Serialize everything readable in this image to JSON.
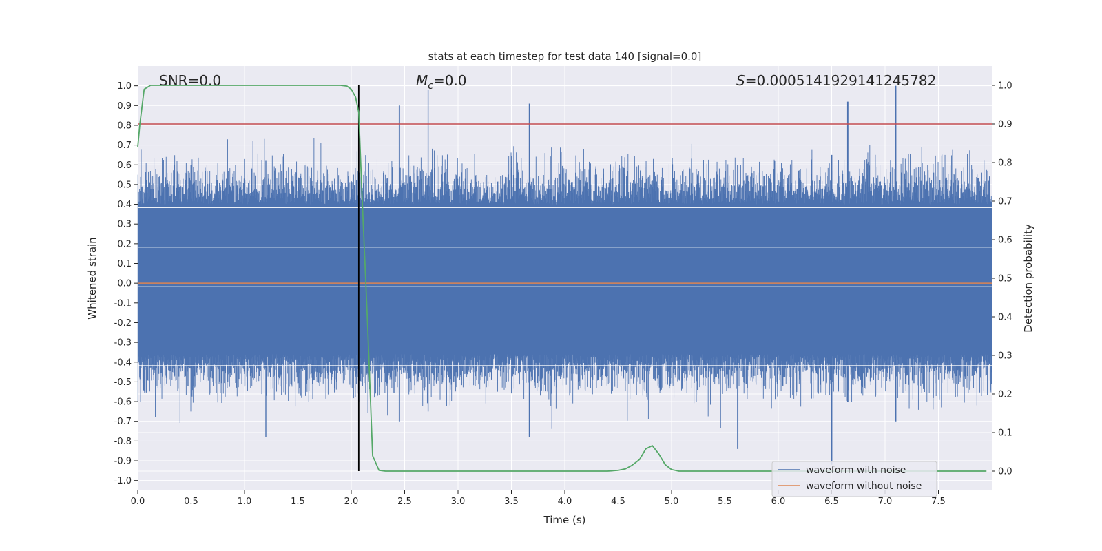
{
  "chart_data": {
    "type": "line",
    "title": "stats at each timestep for test data 140 [signal=0.0]",
    "xlabel": "Time (s)",
    "ylabel": "Whitened strain",
    "ylabel_right": "Detection probability",
    "xlim": [
      0,
      8
    ],
    "ylim": [
      -1.05,
      1.1
    ],
    "ylim_right": [
      -0.05,
      1.05
    ],
    "x_ticks": [
      "0.0",
      "0.5",
      "1.0",
      "1.5",
      "2.0",
      "2.5",
      "3.0",
      "3.5",
      "4.0",
      "4.5",
      "5.0",
      "5.5",
      "6.0",
      "6.5",
      "7.0",
      "7.5"
    ],
    "y_ticks": [
      "1.0",
      "0.9",
      "0.8",
      "0.7",
      "0.6",
      "0.5",
      "0.4",
      "0.3",
      "0.2",
      "0.1",
      "0.0",
      "-0.1",
      "-0.2",
      "-0.3",
      "-0.4",
      "-0.5",
      "-0.6",
      "-0.7",
      "-0.8",
      "-0.9",
      "-1.0"
    ],
    "y_ticks_right": [
      "1.0",
      "0.9",
      "0.8",
      "0.7",
      "0.6",
      "0.5",
      "0.4",
      "0.3",
      "0.2",
      "0.1",
      "0.0"
    ],
    "annotations": {
      "snr": "SNR=0.0",
      "mc": "M",
      "mc_sub": "c",
      "mc_value": "=0.0",
      "s": "S",
      "s_value": "=0.0005141929141245782"
    },
    "legend": {
      "placement": "lower right",
      "entries": [
        "waveform with noise",
        "waveform without noise"
      ]
    },
    "colors": {
      "noise": "#4c72b0",
      "clean": "#dd8452",
      "probability": "#55a868",
      "threshold": "#c44e52",
      "marker": "#000000",
      "background": "#eaeaf2",
      "grid": "#ffffff"
    },
    "grid": true,
    "threshold_right": 0.9,
    "marker_time": 2.07,
    "series": [
      {
        "name": "waveform with noise",
        "axis": "left",
        "kind": "noise",
        "rms": 0.22,
        "envelope": [
          {
            "x": 0.0,
            "y_min": -0.6,
            "y_max": 0.55
          },
          {
            "x": 0.5,
            "y_min": -0.65,
            "y_max": 0.6
          },
          {
            "x": 1.2,
            "y_min": -0.78,
            "y_max": 0.62
          },
          {
            "x": 2.45,
            "y_min": -0.7,
            "y_max": 0.9
          },
          {
            "x": 2.72,
            "y_min": -0.65,
            "y_max": 0.98
          },
          {
            "x": 3.67,
            "y_min": -0.78,
            "y_max": 0.91
          },
          {
            "x": 5.62,
            "y_min": -0.84,
            "y_max": 0.6
          },
          {
            "x": 6.5,
            "y_min": -0.92,
            "y_max": 0.65
          },
          {
            "x": 6.65,
            "y_min": -0.6,
            "y_max": 0.92
          },
          {
            "x": 7.1,
            "y_min": -0.7,
            "y_max": 1.0
          }
        ]
      },
      {
        "name": "waveform without noise",
        "axis": "left",
        "kind": "line",
        "x": [
          0.0,
          8.0
        ],
        "y": [
          0.0,
          0.0
        ]
      },
      {
        "name": "",
        "axis": "right",
        "kind": "line",
        "x": [
          0.0,
          0.02,
          0.06,
          0.12,
          0.5,
          1.0,
          1.5,
          1.8,
          1.9,
          1.96,
          2.0,
          2.04,
          2.07,
          2.1,
          2.15,
          2.2,
          2.26,
          2.32,
          3.0,
          4.0,
          4.4,
          4.5,
          4.57,
          4.63,
          4.7,
          4.76,
          4.82,
          4.88,
          4.94,
          5.0,
          5.07,
          5.2,
          6.0,
          7.0,
          7.95
        ],
        "y": [
          0.84,
          0.9,
          0.99,
          1.0,
          1.0,
          1.0,
          1.0,
          1.0,
          1.0,
          0.998,
          0.99,
          0.97,
          0.93,
          0.72,
          0.4,
          0.04,
          0.002,
          0.0,
          0.0,
          0.0,
          0.0,
          0.002,
          0.006,
          0.015,
          0.03,
          0.058,
          0.066,
          0.045,
          0.017,
          0.004,
          0.0,
          0.0,
          0.0,
          0.0,
          0.0
        ]
      }
    ]
  }
}
